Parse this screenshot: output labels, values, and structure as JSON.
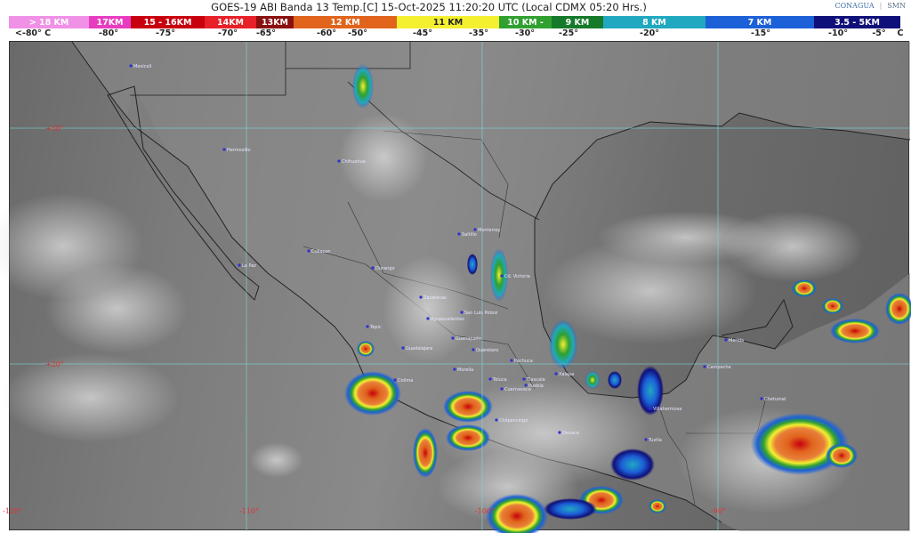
{
  "header": {
    "title": "GOES-19 ABI Banda 13 Temp.[C] 15-Oct-2025 11:20:20 UTC (Local CDMX  05:20 Hrs.)",
    "logos": [
      "CONAGUA",
      "SMN"
    ]
  },
  "legend": {
    "bands": [
      {
        "label": "> 18 KM",
        "color": "#f090e6"
      },
      {
        "label": "17KM",
        "color": "#e83cc0"
      },
      {
        "label": "15 - 16KM",
        "color": "#c8000e"
      },
      {
        "label": "14KM",
        "color": "#e82028"
      },
      {
        "label": "13KM",
        "color": "#8a1010"
      },
      {
        "label": "12 KM",
        "color": "#e0641c"
      },
      {
        "label": "11 KM",
        "color": "#f4f030"
      },
      {
        "label": "10 KM -",
        "color": "#30a030"
      },
      {
        "label": "9 KM",
        "color": "#157a2a"
      },
      {
        "label": "8 KM",
        "color": "#20a8c0"
      },
      {
        "label": "7 KM",
        "color": "#1c60d8"
      },
      {
        "label": "3.5 - 5KM",
        "color": "#10107a"
      }
    ],
    "temps": [
      "<-80° C",
      "-80°",
      "-75°",
      "-70°",
      "-65°",
      "-60°",
      "-50°",
      "-45°",
      "-35°",
      "-30°",
      "-25°",
      "-20°",
      "-15°",
      "-10°",
      "-5°",
      "C"
    ]
  },
  "map": {
    "lat_labels": [
      "+30°",
      "+20°"
    ],
    "lon_labels": [
      "-120°",
      "-110°",
      "-100°",
      "-90°"
    ],
    "cities": [
      "Mexicali",
      "Hermosillo",
      "Chihuahua",
      "La Paz",
      "Culiacan",
      "Durango",
      "Saltillo",
      "Monterrey",
      "Cd. Victoria",
      "Zacatecas",
      "San Luis Potosi",
      "Aguascalientes",
      "Tepic",
      "Guadalajara",
      "Guanajuato",
      "Queretaro",
      "Pachuca",
      "Morelia",
      "Colima",
      "Toluca",
      "Tlaxcala",
      "Puebla",
      "Cuernavaca",
      "Chilpancingo",
      "Oaxaca",
      "Xalapa",
      "Villahermosa",
      "Tuxtla",
      "Merida",
      "Campeche",
      "Chetumal"
    ]
  }
}
